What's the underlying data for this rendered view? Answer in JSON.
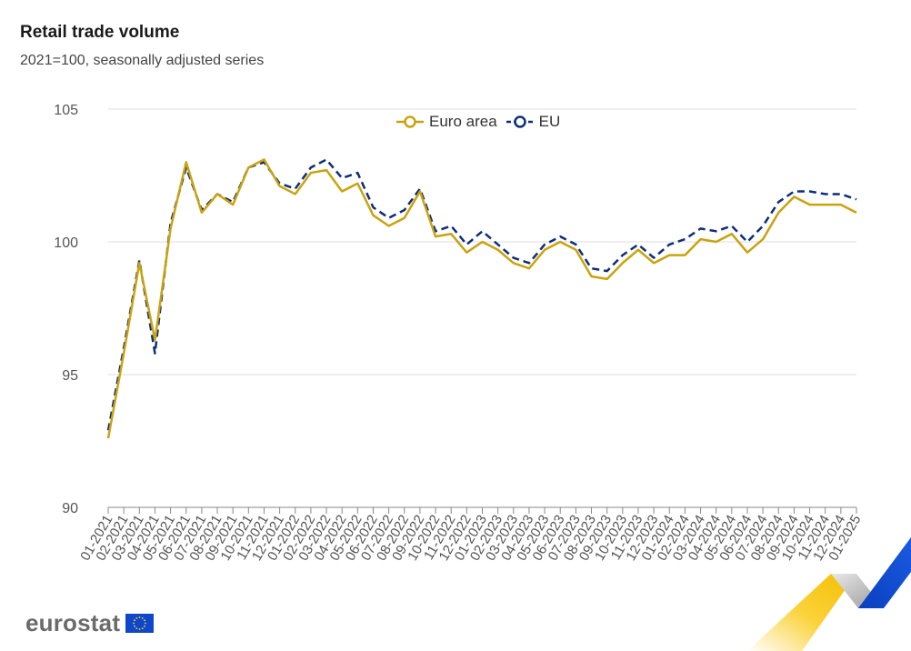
{
  "header": {
    "title": "Retail trade volume",
    "subtitle": "2021=100, seasonally adjusted series"
  },
  "logo": {
    "text": "eurostat",
    "flag_icon": "eu-flag-icon"
  },
  "colors": {
    "euro_area": "#c9a30f",
    "eu": "#0e2e78",
    "grid": "#dddddd",
    "axis_text": "#555555"
  },
  "chart_data": {
    "type": "line",
    "title": "Retail trade volume",
    "subtitle": "2021=100, seasonally adjusted series",
    "xlabel": "",
    "ylabel": "",
    "ylim": [
      90,
      105
    ],
    "yticks": [
      90,
      95,
      100,
      105
    ],
    "grid": true,
    "legend": "top-center",
    "categories": [
      "01-2021",
      "02-2021",
      "03-2021",
      "04-2021",
      "05-2021",
      "06-2021",
      "07-2021",
      "08-2021",
      "09-2021",
      "10-2021",
      "11-2021",
      "12-2021",
      "01-2022",
      "02-2022",
      "03-2022",
      "04-2022",
      "05-2022",
      "06-2022",
      "07-2022",
      "08-2022",
      "09-2022",
      "10-2022",
      "11-2022",
      "12-2022",
      "01-2023",
      "02-2023",
      "03-2023",
      "04-2023",
      "05-2023",
      "06-2023",
      "07-2023",
      "08-2023",
      "09-2023",
      "10-2023",
      "11-2023",
      "12-2023",
      "01-2024",
      "02-2024",
      "03-2024",
      "04-2024",
      "05-2024",
      "06-2024",
      "07-2024",
      "08-2024",
      "09-2024",
      "10-2024",
      "11-2024",
      "12-2024",
      "01-2025"
    ],
    "series": [
      {
        "name": "Euro area",
        "style": "solid",
        "values": [
          92.6,
          95.8,
          99.2,
          96.3,
          100.5,
          103.0,
          101.1,
          101.8,
          101.4,
          102.8,
          103.1,
          102.1,
          101.8,
          102.6,
          102.7,
          101.9,
          102.2,
          101.0,
          100.6,
          100.9,
          101.9,
          100.2,
          100.3,
          99.6,
          100.0,
          99.7,
          99.2,
          99.0,
          99.7,
          100.0,
          99.7,
          98.7,
          98.6,
          99.2,
          99.7,
          99.2,
          99.5,
          99.5,
          100.1,
          100.0,
          100.3,
          99.6,
          100.1,
          101.1,
          101.7,
          101.4,
          101.4,
          101.4,
          101.1
        ]
      },
      {
        "name": "EU",
        "style": "dashed",
        "values": [
          92.9,
          96.0,
          99.3,
          95.8,
          100.7,
          102.8,
          101.2,
          101.8,
          101.5,
          102.8,
          103.0,
          102.2,
          102.0,
          102.8,
          103.1,
          102.4,
          102.6,
          101.3,
          100.9,
          101.2,
          102.0,
          100.4,
          100.6,
          99.9,
          100.4,
          99.9,
          99.4,
          99.2,
          99.9,
          100.2,
          99.9,
          99.0,
          98.9,
          99.5,
          99.9,
          99.4,
          99.9,
          100.1,
          100.5,
          100.4,
          100.6,
          100.0,
          100.6,
          101.5,
          101.9,
          101.9,
          101.8,
          101.8,
          101.6
        ]
      }
    ]
  }
}
